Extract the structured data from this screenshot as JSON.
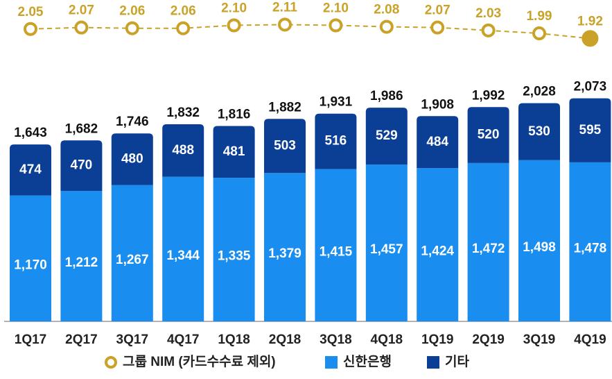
{
  "chart_data": {
    "type": "bar",
    "categories": [
      "1Q17",
      "2Q17",
      "3Q17",
      "4Q17",
      "1Q18",
      "2Q18",
      "3Q18",
      "4Q18",
      "1Q19",
      "2Q19",
      "3Q19",
      "4Q19"
    ],
    "series": [
      {
        "name": "그룹 NIM (카드수수료 제외)",
        "type": "line",
        "axis": "y2",
        "color": "#c9a227",
        "values": [
          2.05,
          2.07,
          2.06,
          2.06,
          2.1,
          2.11,
          2.1,
          2.08,
          2.07,
          2.03,
          1.99,
          1.92
        ],
        "value_labels": [
          "2.05",
          "2.07",
          "2.06",
          "2.06",
          "2.10",
          "2.11",
          "2.10",
          "2.08",
          "2.07",
          "2.03",
          "1.99",
          "1.92"
        ]
      },
      {
        "name": "신한은행",
        "type": "bar",
        "color": "#1a8ef0",
        "values": [
          1170,
          1212,
          1267,
          1344,
          1335,
          1379,
          1415,
          1457,
          1424,
          1472,
          1498,
          1478
        ],
        "value_labels": [
          "1,170",
          "1,212",
          "1,267",
          "1,344",
          "1,335",
          "1,379",
          "1,415",
          "1,457",
          "1,424",
          "1,472",
          "1,498",
          "1,478"
        ]
      },
      {
        "name": "기타",
        "type": "bar",
        "color": "#0b3f95",
        "values": [
          474,
          470,
          480,
          488,
          481,
          503,
          516,
          529,
          484,
          520,
          530,
          595
        ],
        "value_labels": [
          "474",
          "470",
          "480",
          "488",
          "481",
          "503",
          "516",
          "529",
          "484",
          "520",
          "530",
          "595"
        ]
      }
    ],
    "totals": {
      "values": [
        1643,
        1682,
        1746,
        1832,
        1816,
        1882,
        1931,
        1986,
        1908,
        1992,
        2028,
        2073
      ],
      "value_labels": [
        "1,643",
        "1,682",
        "1,746",
        "1,832",
        "1,816",
        "1,882",
        "1,931",
        "1,986",
        "1,908",
        "1,992",
        "2,028",
        "2,073"
      ]
    },
    "ylim": [
      0,
      2800
    ],
    "y2lim": [
      1.8,
      2.2
    ]
  }
}
